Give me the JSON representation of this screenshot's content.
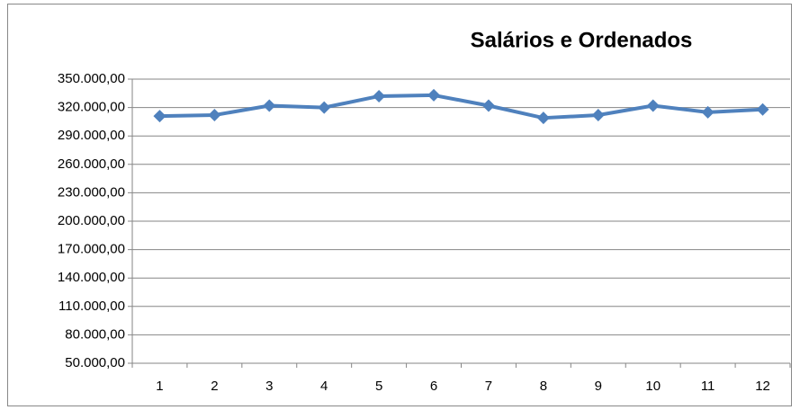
{
  "chart_data": {
    "type": "line",
    "title": "Salários e Ordenados",
    "categories": [
      "1",
      "2",
      "3",
      "4",
      "5",
      "6",
      "7",
      "8",
      "9",
      "10",
      "11",
      "12"
    ],
    "series": [
      {
        "color": "#4f81bd",
        "values": [
          311000,
          312000,
          322000,
          320000,
          332000,
          333000,
          322000,
          309000,
          312000,
          322000,
          315000,
          318000
        ]
      }
    ],
    "ylim": [
      50000,
      350000
    ],
    "yticks": [
      {
        "value": 50000,
        "label": "50.000,00"
      },
      {
        "value": 80000,
        "label": "80.000,00"
      },
      {
        "value": 110000,
        "label": "110.000,00"
      },
      {
        "value": 140000,
        "label": "140.000,00"
      },
      {
        "value": 170000,
        "label": "170.000,00"
      },
      {
        "value": 200000,
        "label": "200.000,00"
      },
      {
        "value": 230000,
        "label": "230.000,00"
      },
      {
        "value": 260000,
        "label": "260.000,00"
      },
      {
        "value": 290000,
        "label": "290.000,00"
      },
      {
        "value": 320000,
        "label": "320.000,00"
      },
      {
        "value": 350000,
        "label": "350.000,00"
      }
    ],
    "grid": true
  }
}
